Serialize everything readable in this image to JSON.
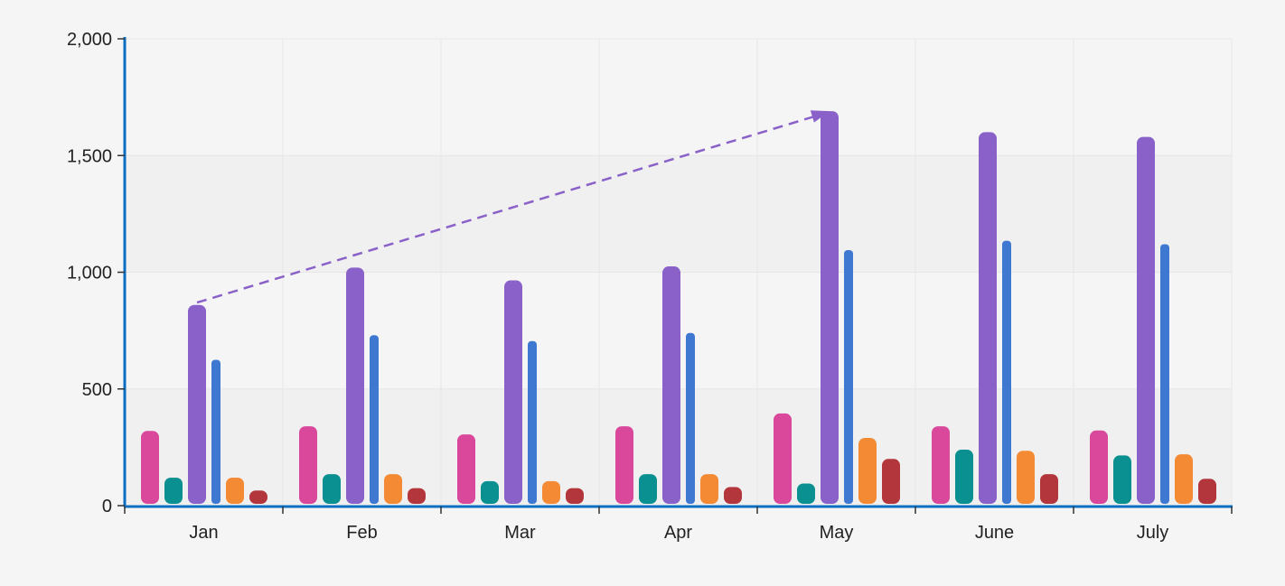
{
  "chart_data": {
    "type": "bar",
    "title": "",
    "xlabel": "",
    "ylabel": "",
    "ylim": [
      0,
      2000
    ],
    "yticks": [
      0,
      500,
      1000,
      1500,
      2000
    ],
    "ytick_labels": [
      "0",
      "500",
      "1,000",
      "1,500",
      "2,000"
    ],
    "grid": true,
    "legend": "none",
    "categories": [
      "Jan",
      "Feb",
      "Mar",
      "Apr",
      "May",
      "June",
      "July"
    ],
    "series": [
      {
        "color": "#d9489b",
        "values": [
          320,
          340,
          305,
          340,
          395,
          340,
          322
        ]
      },
      {
        "color": "#0a9090",
        "values": [
          120,
          135,
          105,
          135,
          95,
          240,
          215
        ]
      },
      {
        "color": "#8a61c8",
        "values": [
          860,
          1020,
          965,
          1025,
          1690,
          1600,
          1580
        ]
      },
      {
        "color": "#3f78d1",
        "values": [
          625,
          730,
          705,
          740,
          1095,
          1135,
          1120
        ]
      },
      {
        "color": "#f58a35",
        "values": [
          120,
          135,
          105,
          135,
          290,
          235,
          220
        ]
      },
      {
        "color": "#b3363d",
        "values": [
          65,
          75,
          75,
          80,
          200,
          135,
          115
        ]
      }
    ],
    "trend_line": {
      "color": "#8a61c8",
      "style": "dashed",
      "from": {
        "category": "Jan",
        "value": 870
      },
      "to": {
        "category": "May",
        "value": 1690
      }
    },
    "axis_color": "#0a6fc2"
  }
}
